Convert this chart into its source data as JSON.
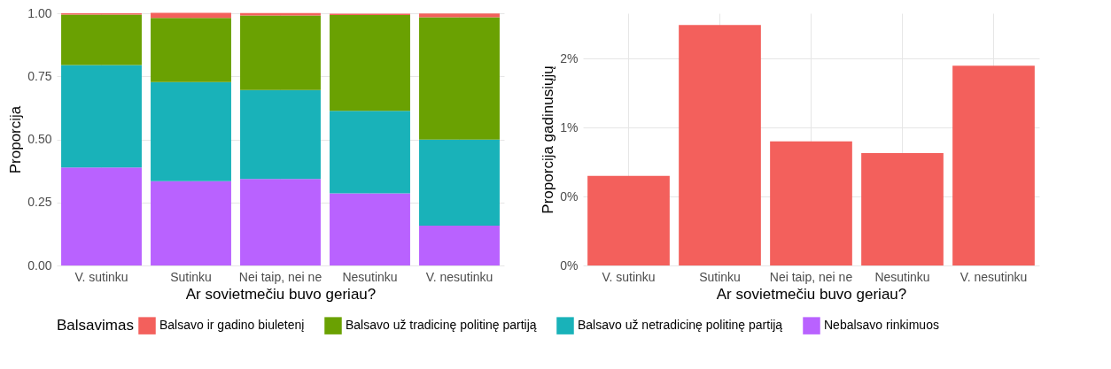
{
  "chart_data": [
    {
      "type": "bar",
      "stacked": true,
      "categories": [
        "V. sutinku",
        "Sutinku",
        "Nei taip, nei ne",
        "Nesutinku",
        "V. nesutinku"
      ],
      "xlabel": "Ar sovietmečiu buvo geriau?",
      "ylabel": "Proporcija",
      "legend_title": "Balsavimas",
      "legend": "bottom",
      "grid": true,
      "ylim": [
        0,
        1
      ],
      "yticks": [
        {
          "value": 0,
          "label": "0.00"
        },
        {
          "value": 0.25,
          "label": "0.25"
        },
        {
          "value": 0.5,
          "label": "0.50"
        },
        {
          "value": 0.75,
          "label": "0.75"
        },
        {
          "value": 1,
          "label": "1.00"
        }
      ],
      "series": [
        {
          "name": "Nebalsavo rinkimuos",
          "color": "#b962ff",
          "values": [
            0.389,
            0.334,
            0.343,
            0.286,
            0.158
          ]
        },
        {
          "name": "Balsavo už netradicinę politinę partiją",
          "color": "#19b2b9",
          "values": [
            0.406,
            0.393,
            0.353,
            0.327,
            0.341
          ]
        },
        {
          "name": "Balsavo už tradicinę politinę partiją",
          "color": "#6aa102",
          "values": [
            0.2,
            0.255,
            0.295,
            0.38,
            0.485
          ]
        },
        {
          "name": "Balsavo ir gadino biuletenį",
          "color": "#f3605c",
          "values": [
            0.005,
            0.02,
            0.01,
            0.005,
            0.015
          ]
        }
      ]
    },
    {
      "type": "bar",
      "categories": [
        "V. sutinku",
        "Sutinku",
        "Nei taip, nei ne",
        "Nesutinku",
        "V. nesutinku"
      ],
      "xlabel": "Ar sovietmečiu buvo geriau?",
      "ylabel": "Proporcija gadinusiųjų",
      "grid": true,
      "color": "#f3605c",
      "values": [
        0.65,
        1.745,
        0.9,
        0.815,
        1.45
      ],
      "ylim": [
        0,
        1.83
      ],
      "yticks": [
        {
          "value": 0,
          "label": "0%"
        },
        {
          "value": 0.5,
          "label": "0%"
        },
        {
          "value": 1,
          "label": "1%"
        },
        {
          "value": 1.5,
          "label": "2%"
        }
      ]
    }
  ]
}
